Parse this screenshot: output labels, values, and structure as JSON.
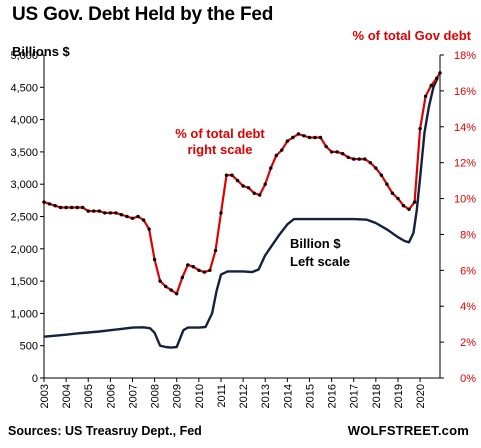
{
  "header": {
    "title": "US Gov. Debt Held by the Fed",
    "left_axis_label": "Billions  $",
    "right_axis_label": "% of total Gov debt"
  },
  "footer": {
    "source": "Sources: US Treasruy Dept., Fed",
    "brand": "WOLFSTREET.com"
  },
  "chart_data": {
    "type": "line",
    "title": "US Gov. Debt Held by the Fed",
    "x_ticks": [
      "2003",
      "2004",
      "2005",
      "2006",
      "2007",
      "2008",
      "2009",
      "2010",
      "2011",
      "2012",
      "2013",
      "2014",
      "2015",
      "2016",
      "2017",
      "2018",
      "2019",
      "2020"
    ],
    "xlim": [
      2003,
      2020.9
    ],
    "left_axis": {
      "label": "Billions  $",
      "ylim": [
        0,
        5000
      ],
      "ticks": [
        "0",
        "500",
        "1,000",
        "1,500",
        "2,000",
        "2,500",
        "3,000",
        "3,500",
        "4,000",
        "4,500",
        "5,000"
      ]
    },
    "right_axis": {
      "label": "% of total Gov debt",
      "ylim": [
        0,
        18
      ],
      "ticks": [
        "0%",
        "2%",
        "4%",
        "6%",
        "8%",
        "10%",
        "12%",
        "14%",
        "16%",
        "18%"
      ],
      "color": "#e00000"
    },
    "annotations": [
      {
        "lines": [
          "% of total debt",
          "right scale"
        ],
        "color": "#e00000"
      },
      {
        "lines": [
          "Billion $",
          "Left scale"
        ],
        "color": "#000000"
      }
    ],
    "series": [
      {
        "name": "Billion $ (left scale)",
        "axis": "left",
        "color": "#14213d",
        "points": [
          [
            2003.0,
            640
          ],
          [
            2003.5,
            655
          ],
          [
            2004.0,
            670
          ],
          [
            2004.5,
            690
          ],
          [
            2005.0,
            705
          ],
          [
            2005.5,
            720
          ],
          [
            2006.0,
            740
          ],
          [
            2006.5,
            760
          ],
          [
            2007.0,
            780
          ],
          [
            2007.5,
            785
          ],
          [
            2007.8,
            770
          ],
          [
            2008.0,
            700
          ],
          [
            2008.25,
            500
          ],
          [
            2008.5,
            480
          ],
          [
            2008.75,
            470
          ],
          [
            2009.0,
            480
          ],
          [
            2009.3,
            740
          ],
          [
            2009.5,
            780
          ],
          [
            2010.0,
            780
          ],
          [
            2010.3,
            790
          ],
          [
            2010.6,
            1000
          ],
          [
            2010.8,
            1350
          ],
          [
            2011.0,
            1600
          ],
          [
            2011.3,
            1650
          ],
          [
            2011.6,
            1650
          ],
          [
            2012.0,
            1650
          ],
          [
            2012.4,
            1640
          ],
          [
            2012.7,
            1680
          ],
          [
            2013.0,
            1900
          ],
          [
            2013.3,
            2050
          ],
          [
            2013.6,
            2200
          ],
          [
            2014.0,
            2380
          ],
          [
            2014.3,
            2460
          ],
          [
            2014.6,
            2460
          ],
          [
            2015.0,
            2460
          ],
          [
            2016.0,
            2460
          ],
          [
            2017.0,
            2460
          ],
          [
            2017.6,
            2450
          ],
          [
            2018.0,
            2400
          ],
          [
            2018.5,
            2300
          ],
          [
            2019.0,
            2180
          ],
          [
            2019.3,
            2120
          ],
          [
            2019.5,
            2100
          ],
          [
            2019.7,
            2250
          ],
          [
            2019.85,
            2600
          ],
          [
            2020.0,
            3100
          ],
          [
            2020.2,
            3800
          ],
          [
            2020.4,
            4200
          ],
          [
            2020.6,
            4500
          ],
          [
            2020.8,
            4650
          ]
        ]
      },
      {
        "name": "% of total debt (right scale)",
        "axis": "right",
        "color": "#e00000",
        "marker_color": "#000000",
        "points": [
          [
            2003.0,
            9.8
          ],
          [
            2003.25,
            9.7
          ],
          [
            2003.5,
            9.6
          ],
          [
            2003.75,
            9.5
          ],
          [
            2004.0,
            9.5
          ],
          [
            2004.25,
            9.5
          ],
          [
            2004.5,
            9.5
          ],
          [
            2004.75,
            9.5
          ],
          [
            2005.0,
            9.3
          ],
          [
            2005.25,
            9.3
          ],
          [
            2005.5,
            9.3
          ],
          [
            2005.75,
            9.2
          ],
          [
            2006.0,
            9.2
          ],
          [
            2006.25,
            9.2
          ],
          [
            2006.5,
            9.1
          ],
          [
            2006.75,
            9.0
          ],
          [
            2007.0,
            8.9
          ],
          [
            2007.25,
            9.0
          ],
          [
            2007.5,
            8.8
          ],
          [
            2007.75,
            8.3
          ],
          [
            2008.0,
            6.6
          ],
          [
            2008.25,
            5.4
          ],
          [
            2008.5,
            5.1
          ],
          [
            2008.75,
            4.9
          ],
          [
            2009.0,
            4.7
          ],
          [
            2009.25,
            5.6
          ],
          [
            2009.5,
            6.3
          ],
          [
            2009.75,
            6.2
          ],
          [
            2010.0,
            6.0
          ],
          [
            2010.25,
            5.9
          ],
          [
            2010.5,
            6.0
          ],
          [
            2010.75,
            7.1
          ],
          [
            2011.0,
            9.2
          ],
          [
            2011.25,
            11.3
          ],
          [
            2011.5,
            11.3
          ],
          [
            2011.75,
            11.0
          ],
          [
            2012.0,
            10.7
          ],
          [
            2012.25,
            10.6
          ],
          [
            2012.5,
            10.3
          ],
          [
            2012.75,
            10.2
          ],
          [
            2013.0,
            10.8
          ],
          [
            2013.25,
            11.7
          ],
          [
            2013.5,
            12.4
          ],
          [
            2013.75,
            12.7
          ],
          [
            2014.0,
            13.2
          ],
          [
            2014.25,
            13.4
          ],
          [
            2014.5,
            13.6
          ],
          [
            2014.75,
            13.5
          ],
          [
            2015.0,
            13.4
          ],
          [
            2015.25,
            13.4
          ],
          [
            2015.5,
            13.4
          ],
          [
            2015.75,
            12.9
          ],
          [
            2016.0,
            12.6
          ],
          [
            2016.25,
            12.6
          ],
          [
            2016.5,
            12.5
          ],
          [
            2016.75,
            12.3
          ],
          [
            2017.0,
            12.2
          ],
          [
            2017.25,
            12.2
          ],
          [
            2017.5,
            12.2
          ],
          [
            2017.75,
            12.0
          ],
          [
            2018.0,
            11.7
          ],
          [
            2018.25,
            11.3
          ],
          [
            2018.5,
            10.8
          ],
          [
            2018.75,
            10.3
          ],
          [
            2019.0,
            10.0
          ],
          [
            2019.25,
            9.6
          ],
          [
            2019.5,
            9.4
          ],
          [
            2019.75,
            9.8
          ],
          [
            2020.0,
            13.9
          ],
          [
            2020.25,
            15.7
          ],
          [
            2020.5,
            16.3
          ],
          [
            2020.75,
            16.7
          ],
          [
            2020.9,
            17.0
          ]
        ]
      }
    ]
  }
}
